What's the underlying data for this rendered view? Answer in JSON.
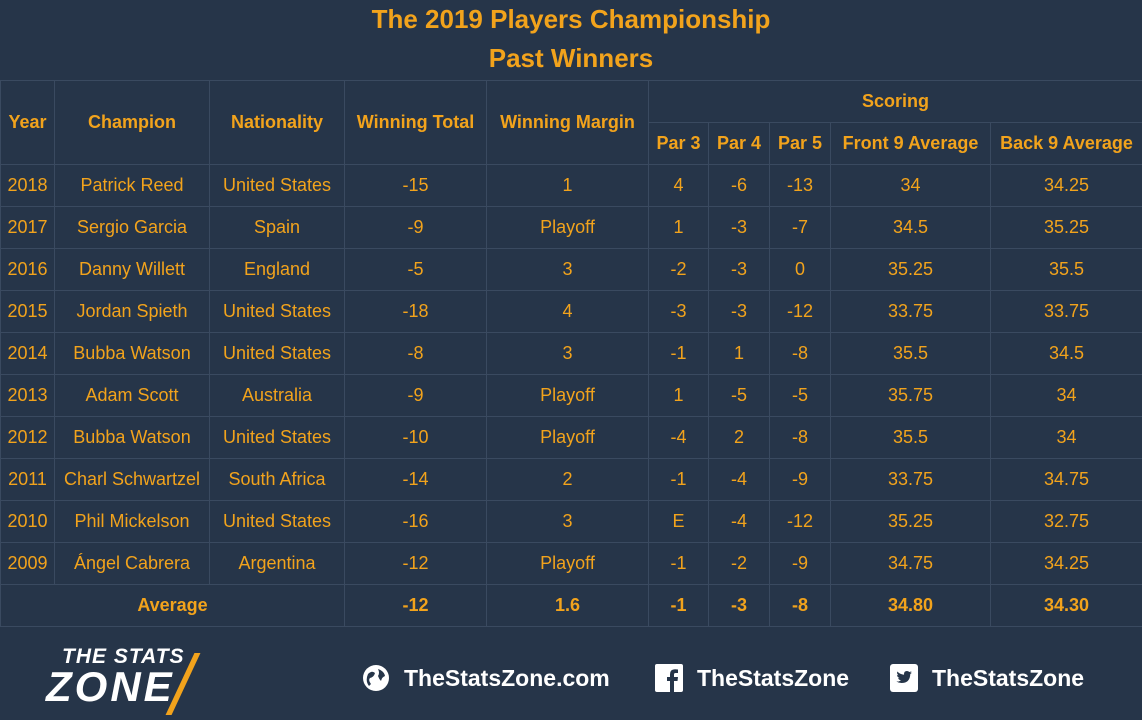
{
  "title": {
    "line1": "The 2019 Players Championship",
    "line2": "Past Winners"
  },
  "table": {
    "headers": {
      "year": "Year",
      "champion": "Champion",
      "nationality": "Nationality",
      "winning_total": "Winning Total",
      "winning_margin": "Winning Margin",
      "scoring": "Scoring",
      "par3": "Par 3",
      "par4": "Par 4",
      "par5": "Par 5",
      "front9": "Front 9 Average",
      "back9": "Back 9 Average"
    },
    "rows": [
      {
        "year": "2018",
        "champion": "Patrick Reed",
        "nationality": "United States",
        "total": "-15",
        "margin": "1",
        "par3": "4",
        "par4": "-6",
        "par5": "-13",
        "front9": "34",
        "back9": "34.25"
      },
      {
        "year": "2017",
        "champion": "Sergio Garcia",
        "nationality": "Spain",
        "total": "-9",
        "margin": "Playoff",
        "par3": "1",
        "par4": "-3",
        "par5": "-7",
        "front9": "34.5",
        "back9": "35.25"
      },
      {
        "year": "2016",
        "champion": "Danny Willett",
        "nationality": "England",
        "total": "-5",
        "margin": "3",
        "par3": "-2",
        "par4": "-3",
        "par5": "0",
        "front9": "35.25",
        "back9": "35.5"
      },
      {
        "year": "2015",
        "champion": "Jordan Spieth",
        "nationality": "United States",
        "total": "-18",
        "margin": "4",
        "par3": "-3",
        "par4": "-3",
        "par5": "-12",
        "front9": "33.75",
        "back9": "33.75"
      },
      {
        "year": "2014",
        "champion": "Bubba Watson",
        "nationality": "United States",
        "total": "-8",
        "margin": "3",
        "par3": "-1",
        "par4": "1",
        "par5": "-8",
        "front9": "35.5",
        "back9": "34.5"
      },
      {
        "year": "2013",
        "champion": "Adam Scott",
        "nationality": "Australia",
        "total": "-9",
        "margin": "Playoff",
        "par3": "1",
        "par4": "-5",
        "par5": "-5",
        "front9": "35.75",
        "back9": "34"
      },
      {
        "year": "2012",
        "champion": "Bubba Watson",
        "nationality": "United States",
        "total": "-10",
        "margin": "Playoff",
        "par3": "-4",
        "par4": "2",
        "par5": "-8",
        "front9": "35.5",
        "back9": "34"
      },
      {
        "year": "2011",
        "champion": "Charl Schwartzel",
        "nationality": "South Africa",
        "total": "-14",
        "margin": "2",
        "par3": "-1",
        "par4": "-4",
        "par5": "-9",
        "front9": "33.75",
        "back9": "34.75"
      },
      {
        "year": "2010",
        "champion": "Phil Mickelson",
        "nationality": "United States",
        "total": "-16",
        "margin": "3",
        "par3": "E",
        "par4": "-4",
        "par5": "-12",
        "front9": "35.25",
        "back9": "32.75"
      },
      {
        "year": "2009",
        "champion": "Ángel Cabrera",
        "nationality": "Argentina",
        "total": "-12",
        "margin": "Playoff",
        "par3": "-1",
        "par4": "-2",
        "par5": "-9",
        "front9": "34.75",
        "back9": "34.25"
      }
    ],
    "average": {
      "label": "Average",
      "total": "-12",
      "margin": "1.6",
      "par3": "-1",
      "par4": "-3",
      "par5": "-8",
      "front9": "34.80",
      "back9": "34.30"
    }
  },
  "footer": {
    "logo_line1": "THE STATS",
    "logo_line2": "ZONE",
    "website": "TheStatsZone.com",
    "facebook": "TheStatsZone",
    "twitter": "TheStatsZone",
    "icons": {
      "website": "globe-icon",
      "facebook": "facebook-icon",
      "twitter": "twitter-icon"
    }
  },
  "colors": {
    "background": "#263549",
    "accent": "#f2a31c",
    "text_white": "#ffffff"
  }
}
